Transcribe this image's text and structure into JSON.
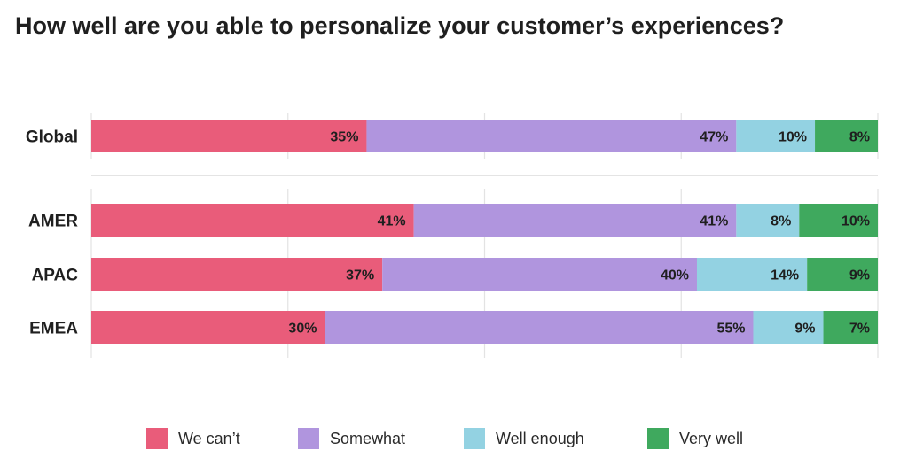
{
  "title": "How well are you able to personalize your customer’s experiences?",
  "chart_data": {
    "type": "bar",
    "orientation": "horizontal",
    "stacked": true,
    "title": "How well are you able to personalize your customer’s experiences?",
    "categories": [
      "Global",
      "AMER",
      "APAC",
      "EMEA"
    ],
    "series": [
      {
        "name": "We can’t",
        "color": "#e95c7a",
        "values": [
          35,
          41,
          37,
          30
        ]
      },
      {
        "name": "Somewhat",
        "color": "#b095de",
        "values": [
          47,
          41,
          40,
          55
        ]
      },
      {
        "name": "Well enough",
        "color": "#93d2e2",
        "values": [
          10,
          8,
          14,
          9
        ]
      },
      {
        "name": "Very well",
        "color": "#3fa95e",
        "values": [
          8,
          10,
          9,
          7
        ]
      }
    ],
    "value_suffix": "%",
    "xlim": [
      0,
      100
    ],
    "grid": true,
    "legend_position": "bottom"
  }
}
